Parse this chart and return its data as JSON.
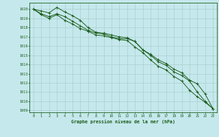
{
  "title": "Graphe pression niveau de la mer (hPa)",
  "background_color": "#c5e8ec",
  "grid_color": "#aacfcf",
  "line_color": "#1a5c1a",
  "xlim": [
    -0.5,
    23.5
  ],
  "ylim": [
    1008.8,
    1020.7
  ],
  "yticks": [
    1009,
    1010,
    1011,
    1012,
    1013,
    1014,
    1015,
    1016,
    1017,
    1018,
    1019,
    1020
  ],
  "xticks": [
    0,
    1,
    2,
    3,
    4,
    5,
    6,
    7,
    8,
    9,
    10,
    11,
    12,
    13,
    14,
    15,
    16,
    17,
    18,
    19,
    20,
    21,
    22,
    23
  ],
  "series1": [
    1020.0,
    1019.8,
    1019.6,
    1020.2,
    1019.7,
    1019.3,
    1018.8,
    1018.0,
    1017.5,
    1017.4,
    1017.2,
    1017.0,
    1016.9,
    1016.5,
    1015.6,
    1015.1,
    1014.5,
    1014.1,
    1013.5,
    1013.1,
    1012.3,
    1011.9,
    1010.8,
    1009.2
  ],
  "series2": [
    1020.0,
    1019.5,
    1019.2,
    1019.5,
    1019.2,
    1018.7,
    1018.2,
    1017.7,
    1017.4,
    1017.3,
    1017.0,
    1016.8,
    1016.8,
    1016.5,
    1015.6,
    1015.0,
    1014.3,
    1013.9,
    1013.2,
    1012.8,
    1012.2,
    1011.0,
    1010.0,
    1009.2
  ],
  "series3": [
    1020.0,
    1019.4,
    1019.0,
    1019.4,
    1018.8,
    1018.4,
    1017.9,
    1017.6,
    1017.2,
    1017.1,
    1016.9,
    1016.7,
    1016.6,
    1015.9,
    1015.3,
    1014.5,
    1013.8,
    1013.4,
    1012.7,
    1012.2,
    1011.2,
    1010.5,
    1009.9,
    1009.2
  ]
}
